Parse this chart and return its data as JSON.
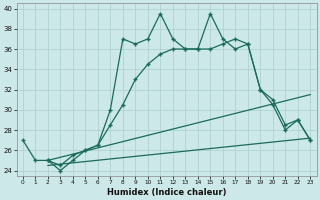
{
  "xlabel": "Humidex (Indice chaleur)",
  "background_color": "#cce8e8",
  "grid_color": "#aacece",
  "line_color": "#1a6b5a",
  "xlim": [
    -0.5,
    23.5
  ],
  "ylim": [
    23.5,
    40.5
  ],
  "yticks": [
    24,
    26,
    28,
    30,
    32,
    34,
    36,
    38,
    40
  ],
  "xticks": [
    0,
    1,
    2,
    3,
    4,
    5,
    6,
    7,
    8,
    9,
    10,
    11,
    12,
    13,
    14,
    15,
    16,
    17,
    18,
    19,
    20,
    21,
    22,
    23
  ],
  "series1_x": [
    0,
    1,
    2,
    3,
    4,
    5,
    6,
    7,
    8,
    9,
    10,
    11,
    12,
    13,
    14,
    15,
    16,
    17,
    18,
    19,
    20,
    21,
    22,
    23
  ],
  "series1_y": [
    27.0,
    25.0,
    25.0,
    24.0,
    25.0,
    26.0,
    26.5,
    30.0,
    37.0,
    36.5,
    37.0,
    39.5,
    37.0,
    36.0,
    36.0,
    39.5,
    37.0,
    36.0,
    36.5,
    32.0,
    30.5,
    28.0,
    29.0,
    27.0
  ],
  "series2_x": [
    2,
    3,
    4,
    5,
    6,
    7,
    8,
    9,
    10,
    11,
    12,
    13,
    14,
    15,
    16,
    17,
    18,
    19,
    20,
    21,
    22,
    23
  ],
  "series2_y": [
    25.0,
    24.5,
    25.5,
    26.0,
    26.5,
    28.5,
    30.5,
    33.0,
    34.5,
    35.5,
    36.0,
    36.0,
    36.0,
    36.0,
    36.5,
    37.0,
    36.5,
    32.0,
    31.0,
    28.5,
    29.0,
    27.0
  ],
  "series3_x": [
    2,
    23
  ],
  "series3_y": [
    25.0,
    31.5
  ],
  "series4_x": [
    2,
    23
  ],
  "series4_y": [
    24.5,
    27.2
  ]
}
